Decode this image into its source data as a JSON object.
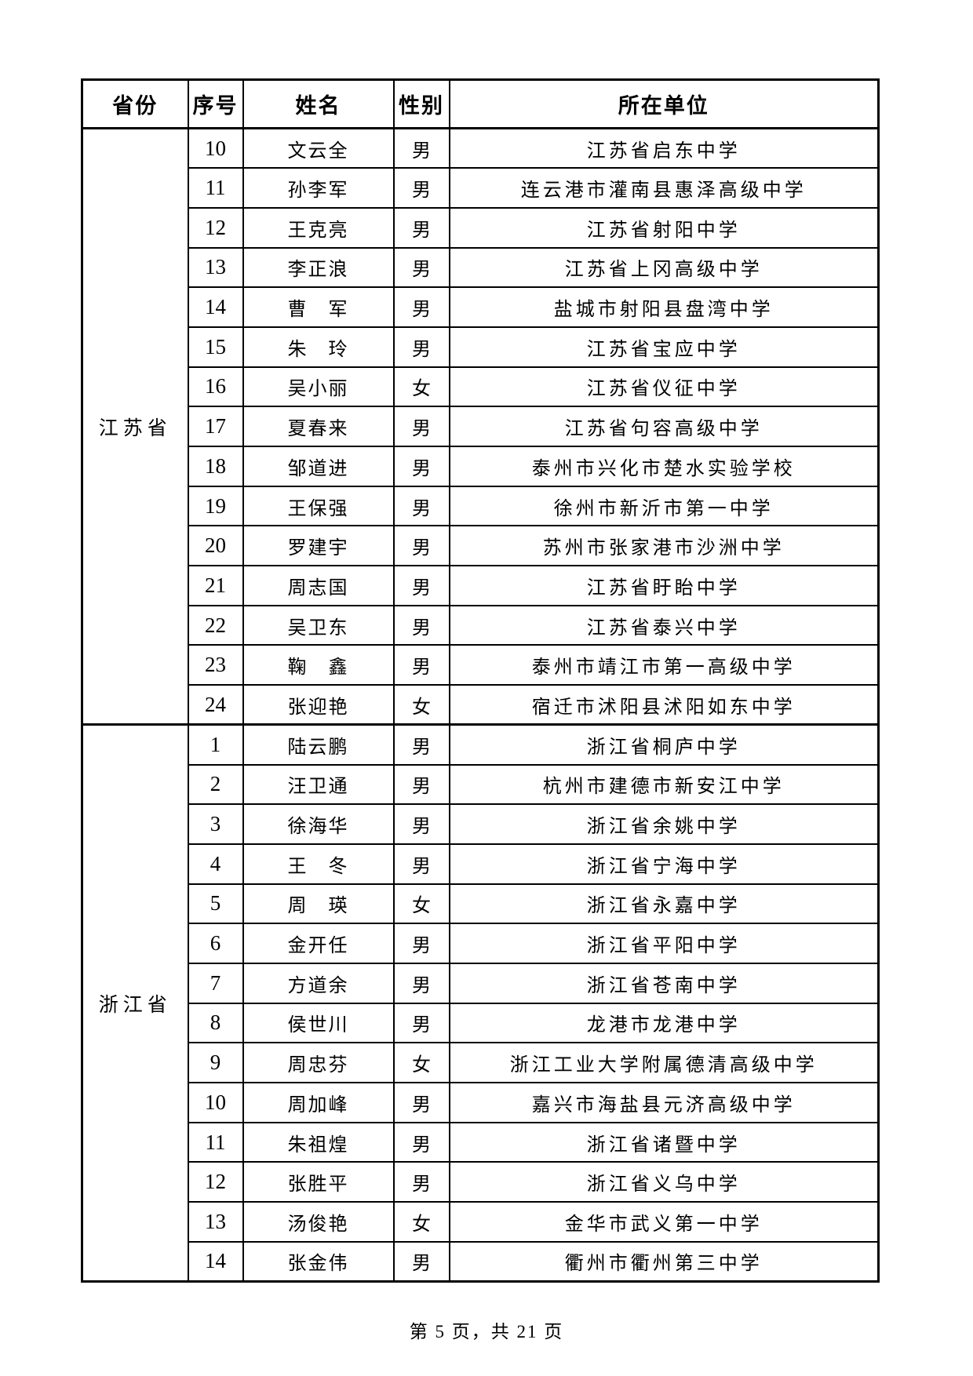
{
  "table": {
    "columns": [
      "省份",
      "序号",
      "姓名",
      "性别",
      "所在单位"
    ],
    "sections": [
      {
        "province": "江苏省",
        "rows": [
          {
            "no": "10",
            "name": "文云全",
            "gender": "男",
            "unit": "江苏省启东中学"
          },
          {
            "no": "11",
            "name": "孙李军",
            "gender": "男",
            "unit": "连云港市灌南县惠泽高级中学"
          },
          {
            "no": "12",
            "name": "王克亮",
            "gender": "男",
            "unit": "江苏省射阳中学"
          },
          {
            "no": "13",
            "name": "李正浪",
            "gender": "男",
            "unit": "江苏省上冈高级中学"
          },
          {
            "no": "14",
            "name": "曹　军",
            "gender": "男",
            "unit": "盐城市射阳县盘湾中学"
          },
          {
            "no": "15",
            "name": "朱　玲",
            "gender": "男",
            "unit": "江苏省宝应中学"
          },
          {
            "no": "16",
            "name": "吴小丽",
            "gender": "女",
            "unit": "江苏省仪征中学"
          },
          {
            "no": "17",
            "name": "夏春来",
            "gender": "男",
            "unit": "江苏省句容高级中学"
          },
          {
            "no": "18",
            "name": "邹道进",
            "gender": "男",
            "unit": "泰州市兴化市楚水实验学校"
          },
          {
            "no": "19",
            "name": "王保强",
            "gender": "男",
            "unit": "徐州市新沂市第一中学"
          },
          {
            "no": "20",
            "name": "罗建宇",
            "gender": "男",
            "unit": "苏州市张家港市沙洲中学"
          },
          {
            "no": "21",
            "name": "周志国",
            "gender": "男",
            "unit": "江苏省盱眙中学"
          },
          {
            "no": "22",
            "name": "吴卫东",
            "gender": "男",
            "unit": "江苏省泰兴中学"
          },
          {
            "no": "23",
            "name": "鞠　鑫",
            "gender": "男",
            "unit": "泰州市靖江市第一高级中学"
          },
          {
            "no": "24",
            "name": "张迎艳",
            "gender": "女",
            "unit": "宿迁市沭阳县沭阳如东中学"
          }
        ]
      },
      {
        "province": "浙江省",
        "rows": [
          {
            "no": "1",
            "name": "陆云鹏",
            "gender": "男",
            "unit": "浙江省桐庐中学"
          },
          {
            "no": "2",
            "name": "汪卫通",
            "gender": "男",
            "unit": "杭州市建德市新安江中学"
          },
          {
            "no": "3",
            "name": "徐海华",
            "gender": "男",
            "unit": "浙江省余姚中学"
          },
          {
            "no": "4",
            "name": "王　冬",
            "gender": "男",
            "unit": "浙江省宁海中学"
          },
          {
            "no": "5",
            "name": "周　瑛",
            "gender": "女",
            "unit": "浙江省永嘉中学"
          },
          {
            "no": "6",
            "name": "金开任",
            "gender": "男",
            "unit": "浙江省平阳中学"
          },
          {
            "no": "7",
            "name": "方道余",
            "gender": "男",
            "unit": "浙江省苍南中学"
          },
          {
            "no": "8",
            "name": "侯世川",
            "gender": "男",
            "unit": "龙港市龙港中学"
          },
          {
            "no": "9",
            "name": "周忠芬",
            "gender": "女",
            "unit": "浙江工业大学附属德清高级中学"
          },
          {
            "no": "10",
            "name": "周加峰",
            "gender": "男",
            "unit": "嘉兴市海盐县元济高级中学"
          },
          {
            "no": "11",
            "name": "朱祖煌",
            "gender": "男",
            "unit": "浙江省诸暨中学"
          },
          {
            "no": "12",
            "name": "张胜平",
            "gender": "男",
            "unit": "浙江省义乌中学"
          },
          {
            "no": "13",
            "name": "汤俊艳",
            "gender": "女",
            "unit": "金华市武义第一中学"
          },
          {
            "no": "14",
            "name": "张金伟",
            "gender": "男",
            "unit": "衢州市衢州第三中学"
          }
        ]
      }
    ]
  },
  "footer": {
    "text": "第 5 页，共 21 页"
  }
}
